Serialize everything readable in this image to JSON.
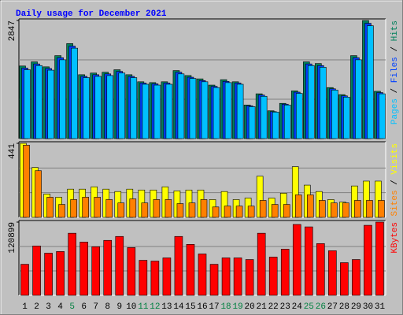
{
  "title": "Daily usage for December 2021",
  "legend_separator": "/",
  "chart_data": [
    {
      "type": "bar",
      "ylim": [
        0,
        2847
      ],
      "yticks": [
        2847
      ],
      "series": [
        {
          "name": "Hits",
          "color": "#00805c",
          "values": [
            1750,
            1850,
            1730,
            2000,
            2290,
            1540,
            1580,
            1600,
            1660,
            1540,
            1370,
            1350,
            1370,
            1640,
            1520,
            1440,
            1290,
            1420,
            1370,
            810,
            1080,
            670,
            850,
            1150,
            1850,
            1810,
            1230,
            1060,
            2000,
            2847,
            1140
          ]
        },
        {
          "name": "Files",
          "color": "#0040ff",
          "values": [
            1700,
            1800,
            1690,
            1950,
            2230,
            1500,
            1540,
            1560,
            1620,
            1500,
            1340,
            1320,
            1340,
            1600,
            1480,
            1400,
            1260,
            1380,
            1340,
            790,
            1050,
            650,
            830,
            1120,
            1800,
            1760,
            1200,
            1030,
            1950,
            2780,
            1110
          ]
        },
        {
          "name": "Pages",
          "color": "#00c0ff",
          "values": [
            1660,
            1760,
            1650,
            1900,
            2180,
            1470,
            1500,
            1520,
            1580,
            1470,
            1310,
            1290,
            1310,
            1560,
            1450,
            1370,
            1230,
            1350,
            1310,
            770,
            1020,
            640,
            810,
            1090,
            1760,
            1720,
            1170,
            1000,
            1900,
            2720,
            1080
          ]
        }
      ]
    },
    {
      "type": "bar",
      "ylim": [
        0,
        441
      ],
      "yticks": [
        441
      ],
      "series": [
        {
          "name": "Visits",
          "color": "#ffff00",
          "values": [
            441,
            297,
            139,
            120,
            168,
            168,
            182,
            168,
            154,
            168,
            163,
            163,
            182,
            158,
            163,
            163,
            106,
            154,
            106,
            115,
            245,
            115,
            144,
            302,
            192,
            154,
            106,
            91,
            187,
            216,
            216
          ]
        },
        {
          "name": "Sites",
          "color": "#ff8000",
          "values": [
            430,
            278,
            120,
            77,
            106,
            120,
            120,
            106,
            86,
            110,
            86,
            106,
            106,
            82,
            86,
            106,
            62,
            67,
            67,
            67,
            101,
            77,
            77,
            134,
            134,
            101,
            86,
            86,
            101,
            101,
            101
          ]
        }
      ]
    },
    {
      "type": "bar",
      "ylim": [
        0,
        120899
      ],
      "yticks": [
        120899
      ],
      "series": [
        {
          "name": "KBytes",
          "color": "#ff0000",
          "values": [
            51250,
            81500,
            69600,
            72300,
            102500,
            88000,
            80200,
            90700,
            97200,
            78800,
            57800,
            56500,
            61800,
            97200,
            84100,
            68300,
            51250,
            61800,
            61800,
            59100,
            102500,
            63100,
            76200,
            117000,
            113000,
            85400,
            73600,
            53900,
            59100,
            115600,
            120899
          ]
        }
      ],
      "categories": [
        "1",
        "2",
        "3",
        "4",
        "5",
        "6",
        "7",
        "8",
        "9",
        "10",
        "11",
        "12",
        "13",
        "14",
        "15",
        "16",
        "17",
        "18",
        "19",
        "20",
        "21",
        "22",
        "23",
        "24",
        "25",
        "26",
        "27",
        "28",
        "29",
        "30",
        "31"
      ],
      "category_colors": [
        "#000",
        "#000",
        "#000",
        "#000",
        "#008040",
        "#000",
        "#000",
        "#000",
        "#000",
        "#000",
        "#008040",
        "#008040",
        "#000",
        "#000",
        "#000",
        "#000",
        "#000",
        "#008040",
        "#008040",
        "#000",
        "#000",
        "#000",
        "#000",
        "#000",
        "#008040",
        "#008040",
        "#000",
        "#000",
        "#000",
        "#000",
        "#000"
      ]
    }
  ]
}
